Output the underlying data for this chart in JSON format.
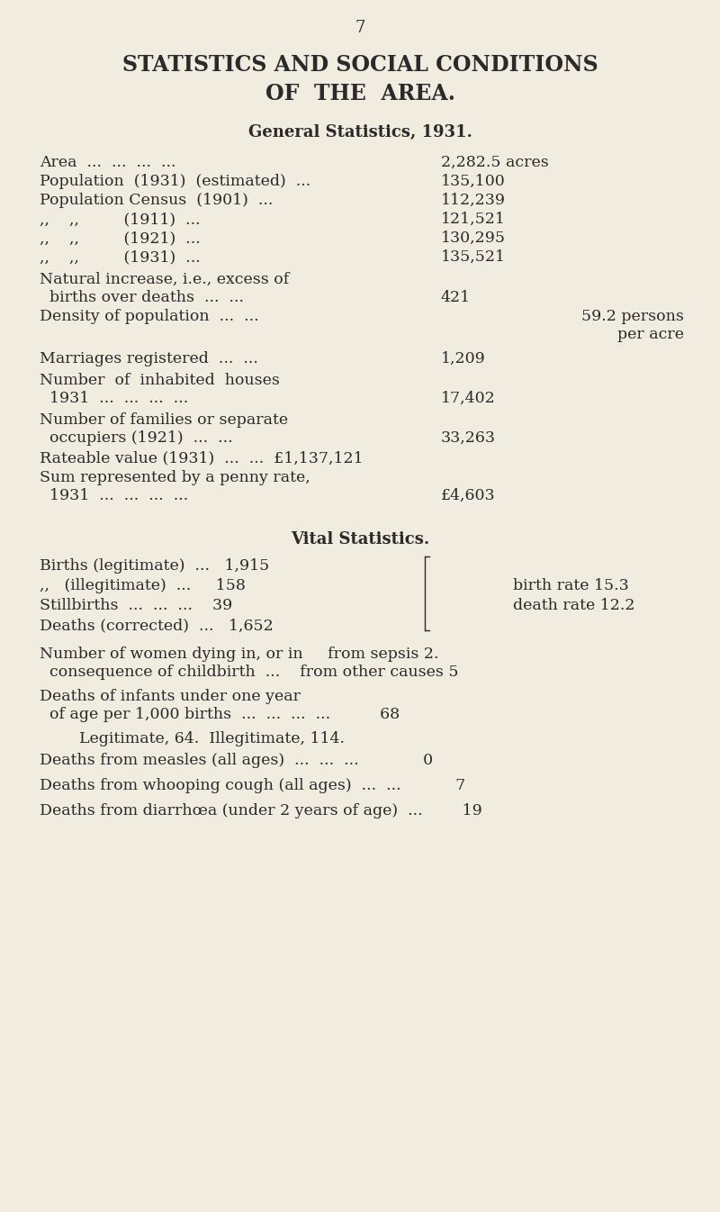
{
  "bg_color": "#f0ece0",
  "text_color": "#2a2a2a",
  "page_number": "7",
  "title_line1": "STATISTICS AND SOCIAL CONDITIONS",
  "title_line2": "OF  THE  AREA.",
  "section1_header": "General Statistics, 1931.",
  "section2_header": "Vital Statistics."
}
